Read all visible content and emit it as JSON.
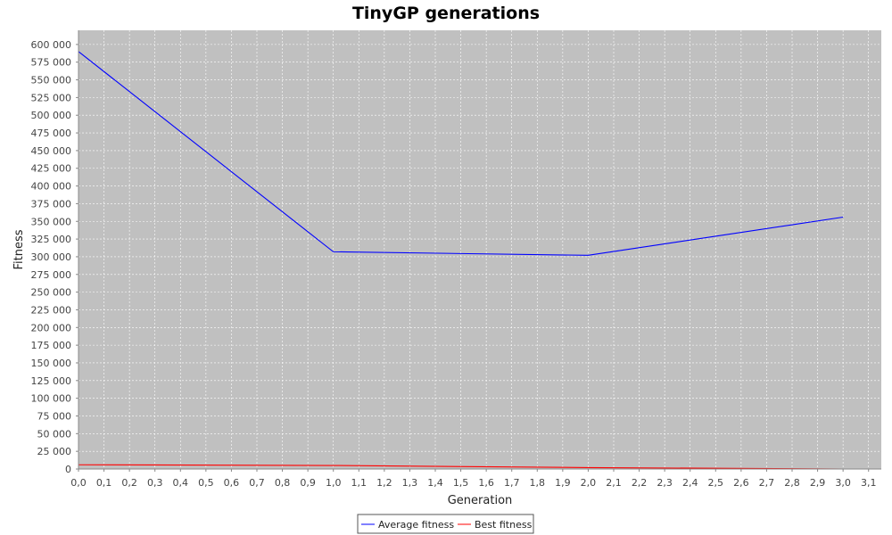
{
  "chart_data": {
    "type": "line",
    "title": "TinyGP generations",
    "xlabel": "Generation",
    "ylabel": "Fitness",
    "xlim": [
      0,
      3.15
    ],
    "ylim": [
      0,
      620000
    ],
    "x_ticks": [
      "0,0",
      "0,1",
      "0,2",
      "0,3",
      "0,4",
      "0,5",
      "0,6",
      "0,7",
      "0,8",
      "0,9",
      "1,0",
      "1,1",
      "1,2",
      "1,3",
      "1,4",
      "1,5",
      "1,6",
      "1,7",
      "1,8",
      "1,9",
      "2,0",
      "2,1",
      "2,2",
      "2,3",
      "2,4",
      "2,5",
      "2,6",
      "2,7",
      "2,8",
      "2,9",
      "3,0",
      "3,1"
    ],
    "y_ticks": [
      "0",
      "25 000",
      "50 000",
      "75 000",
      "100 000",
      "125 000",
      "150 000",
      "175 000",
      "200 000",
      "225 000",
      "250 000",
      "275 000",
      "300 000",
      "325 000",
      "350 000",
      "375 000",
      "400 000",
      "425 000",
      "450 000",
      "475 000",
      "500 000",
      "525 000",
      "550 000",
      "575 000",
      "600 000"
    ],
    "grid": true,
    "background": "#c0c0c0",
    "legend_position": "bottom",
    "series": [
      {
        "name": "Average fitness",
        "color": "#0000ff",
        "x": [
          0,
          1,
          2,
          3
        ],
        "y": [
          590000,
          307000,
          302000,
          356000
        ]
      },
      {
        "name": "Best fitness",
        "color": "#ff0000",
        "x": [
          0,
          1,
          2,
          3
        ],
        "y": [
          6000,
          5000,
          2000,
          0
        ]
      }
    ]
  }
}
